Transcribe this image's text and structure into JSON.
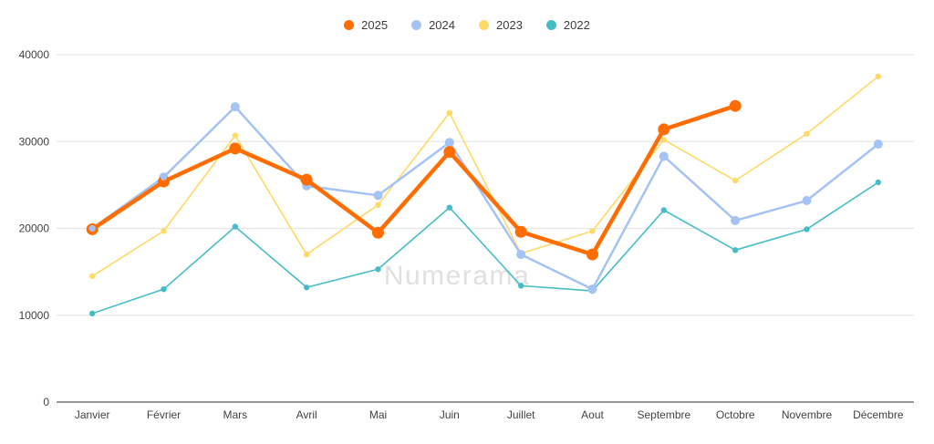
{
  "chart_data": {
    "type": "line",
    "categories": [
      "Janvier",
      "Février",
      "Mars",
      "Avril",
      "Mai",
      "Juin",
      "Juillet",
      "Aout",
      "Septembre",
      "Octobre",
      "Novembre",
      "Décembre"
    ],
    "series": [
      {
        "name": "2025",
        "color": "#ff6d01",
        "values": [
          19900,
          25400,
          29200,
          25600,
          19500,
          28800,
          19600,
          17000,
          31400,
          34100,
          null,
          null
        ]
      },
      {
        "name": "2024",
        "color": "#a4c2f4",
        "values": [
          20000,
          25900,
          34000,
          24900,
          23800,
          29900,
          17000,
          13000,
          28300,
          20900,
          23200,
          29700
        ]
      },
      {
        "name": "2023",
        "color": "#ffd966",
        "values": [
          14500,
          19700,
          30700,
          17000,
          22700,
          33300,
          17100,
          19700,
          30200,
          25500,
          30900,
          37500
        ]
      },
      {
        "name": "2022",
        "color": "#46bdc6",
        "values": [
          10200,
          13000,
          20200,
          13200,
          15300,
          22400,
          13400,
          12800,
          22100,
          17500,
          19900,
          25300
        ]
      }
    ],
    "y_axis": {
      "min": 0,
      "max": 40000,
      "step": 10000,
      "tick_labels": [
        "0",
        "10000",
        "20000",
        "30000",
        "40000"
      ]
    },
    "x_axis": {
      "label": ""
    },
    "title": "",
    "legend_position": "top",
    "grid": true,
    "watermark": "Numerama",
    "colors": {
      "gridline": "#e6e6e6",
      "axis_line": "#757575",
      "tick_text": "#424242",
      "watermark_text": "#e0e0e0"
    }
  }
}
